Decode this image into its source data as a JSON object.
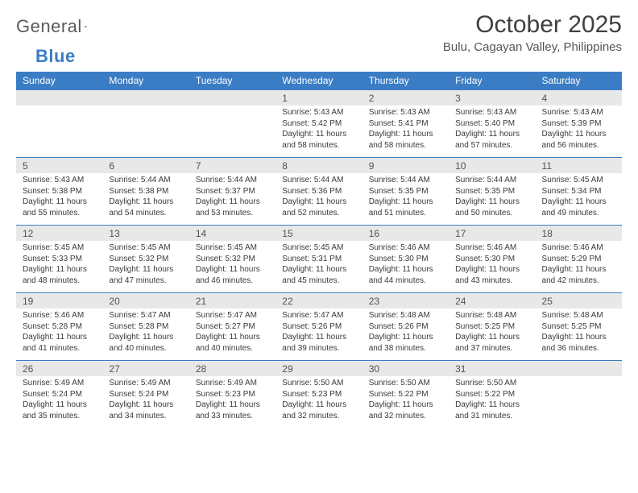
{
  "logo": {
    "text_gray": "General",
    "text_blue": "Blue"
  },
  "title": "October 2025",
  "location": "Bulu, Cagayan Valley, Philippines",
  "day_names": [
    "Sunday",
    "Monday",
    "Tuesday",
    "Wednesday",
    "Thursday",
    "Friday",
    "Saturday"
  ],
  "colors": {
    "header_bg": "#3b7dc4",
    "daynum_bg": "#e8e8e8",
    "border": "#3b7dc4",
    "text": "#3a3a3a"
  },
  "weeks": [
    {
      "nums": [
        "",
        "",
        "",
        "1",
        "2",
        "3",
        "4"
      ],
      "data": [
        null,
        null,
        null,
        {
          "sunrise": "Sunrise: 5:43 AM",
          "sunset": "Sunset: 5:42 PM",
          "day1": "Daylight: 11 hours",
          "day2": "and 58 minutes."
        },
        {
          "sunrise": "Sunrise: 5:43 AM",
          "sunset": "Sunset: 5:41 PM",
          "day1": "Daylight: 11 hours",
          "day2": "and 58 minutes."
        },
        {
          "sunrise": "Sunrise: 5:43 AM",
          "sunset": "Sunset: 5:40 PM",
          "day1": "Daylight: 11 hours",
          "day2": "and 57 minutes."
        },
        {
          "sunrise": "Sunrise: 5:43 AM",
          "sunset": "Sunset: 5:39 PM",
          "day1": "Daylight: 11 hours",
          "day2": "and 56 minutes."
        }
      ]
    },
    {
      "nums": [
        "5",
        "6",
        "7",
        "8",
        "9",
        "10",
        "11"
      ],
      "data": [
        {
          "sunrise": "Sunrise: 5:43 AM",
          "sunset": "Sunset: 5:38 PM",
          "day1": "Daylight: 11 hours",
          "day2": "and 55 minutes."
        },
        {
          "sunrise": "Sunrise: 5:44 AM",
          "sunset": "Sunset: 5:38 PM",
          "day1": "Daylight: 11 hours",
          "day2": "and 54 minutes."
        },
        {
          "sunrise": "Sunrise: 5:44 AM",
          "sunset": "Sunset: 5:37 PM",
          "day1": "Daylight: 11 hours",
          "day2": "and 53 minutes."
        },
        {
          "sunrise": "Sunrise: 5:44 AM",
          "sunset": "Sunset: 5:36 PM",
          "day1": "Daylight: 11 hours",
          "day2": "and 52 minutes."
        },
        {
          "sunrise": "Sunrise: 5:44 AM",
          "sunset": "Sunset: 5:35 PM",
          "day1": "Daylight: 11 hours",
          "day2": "and 51 minutes."
        },
        {
          "sunrise": "Sunrise: 5:44 AM",
          "sunset": "Sunset: 5:35 PM",
          "day1": "Daylight: 11 hours",
          "day2": "and 50 minutes."
        },
        {
          "sunrise": "Sunrise: 5:45 AM",
          "sunset": "Sunset: 5:34 PM",
          "day1": "Daylight: 11 hours",
          "day2": "and 49 minutes."
        }
      ]
    },
    {
      "nums": [
        "12",
        "13",
        "14",
        "15",
        "16",
        "17",
        "18"
      ],
      "data": [
        {
          "sunrise": "Sunrise: 5:45 AM",
          "sunset": "Sunset: 5:33 PM",
          "day1": "Daylight: 11 hours",
          "day2": "and 48 minutes."
        },
        {
          "sunrise": "Sunrise: 5:45 AM",
          "sunset": "Sunset: 5:32 PM",
          "day1": "Daylight: 11 hours",
          "day2": "and 47 minutes."
        },
        {
          "sunrise": "Sunrise: 5:45 AM",
          "sunset": "Sunset: 5:32 PM",
          "day1": "Daylight: 11 hours",
          "day2": "and 46 minutes."
        },
        {
          "sunrise": "Sunrise: 5:45 AM",
          "sunset": "Sunset: 5:31 PM",
          "day1": "Daylight: 11 hours",
          "day2": "and 45 minutes."
        },
        {
          "sunrise": "Sunrise: 5:46 AM",
          "sunset": "Sunset: 5:30 PM",
          "day1": "Daylight: 11 hours",
          "day2": "and 44 minutes."
        },
        {
          "sunrise": "Sunrise: 5:46 AM",
          "sunset": "Sunset: 5:30 PM",
          "day1": "Daylight: 11 hours",
          "day2": "and 43 minutes."
        },
        {
          "sunrise": "Sunrise: 5:46 AM",
          "sunset": "Sunset: 5:29 PM",
          "day1": "Daylight: 11 hours",
          "day2": "and 42 minutes."
        }
      ]
    },
    {
      "nums": [
        "19",
        "20",
        "21",
        "22",
        "23",
        "24",
        "25"
      ],
      "data": [
        {
          "sunrise": "Sunrise: 5:46 AM",
          "sunset": "Sunset: 5:28 PM",
          "day1": "Daylight: 11 hours",
          "day2": "and 41 minutes."
        },
        {
          "sunrise": "Sunrise: 5:47 AM",
          "sunset": "Sunset: 5:28 PM",
          "day1": "Daylight: 11 hours",
          "day2": "and 40 minutes."
        },
        {
          "sunrise": "Sunrise: 5:47 AM",
          "sunset": "Sunset: 5:27 PM",
          "day1": "Daylight: 11 hours",
          "day2": "and 40 minutes."
        },
        {
          "sunrise": "Sunrise: 5:47 AM",
          "sunset": "Sunset: 5:26 PM",
          "day1": "Daylight: 11 hours",
          "day2": "and 39 minutes."
        },
        {
          "sunrise": "Sunrise: 5:48 AM",
          "sunset": "Sunset: 5:26 PM",
          "day1": "Daylight: 11 hours",
          "day2": "and 38 minutes."
        },
        {
          "sunrise": "Sunrise: 5:48 AM",
          "sunset": "Sunset: 5:25 PM",
          "day1": "Daylight: 11 hours",
          "day2": "and 37 minutes."
        },
        {
          "sunrise": "Sunrise: 5:48 AM",
          "sunset": "Sunset: 5:25 PM",
          "day1": "Daylight: 11 hours",
          "day2": "and 36 minutes."
        }
      ]
    },
    {
      "nums": [
        "26",
        "27",
        "28",
        "29",
        "30",
        "31",
        ""
      ],
      "data": [
        {
          "sunrise": "Sunrise: 5:49 AM",
          "sunset": "Sunset: 5:24 PM",
          "day1": "Daylight: 11 hours",
          "day2": "and 35 minutes."
        },
        {
          "sunrise": "Sunrise: 5:49 AM",
          "sunset": "Sunset: 5:24 PM",
          "day1": "Daylight: 11 hours",
          "day2": "and 34 minutes."
        },
        {
          "sunrise": "Sunrise: 5:49 AM",
          "sunset": "Sunset: 5:23 PM",
          "day1": "Daylight: 11 hours",
          "day2": "and 33 minutes."
        },
        {
          "sunrise": "Sunrise: 5:50 AM",
          "sunset": "Sunset: 5:23 PM",
          "day1": "Daylight: 11 hours",
          "day2": "and 32 minutes."
        },
        {
          "sunrise": "Sunrise: 5:50 AM",
          "sunset": "Sunset: 5:22 PM",
          "day1": "Daylight: 11 hours",
          "day2": "and 32 minutes."
        },
        {
          "sunrise": "Sunrise: 5:50 AM",
          "sunset": "Sunset: 5:22 PM",
          "day1": "Daylight: 11 hours",
          "day2": "and 31 minutes."
        },
        null
      ]
    }
  ]
}
